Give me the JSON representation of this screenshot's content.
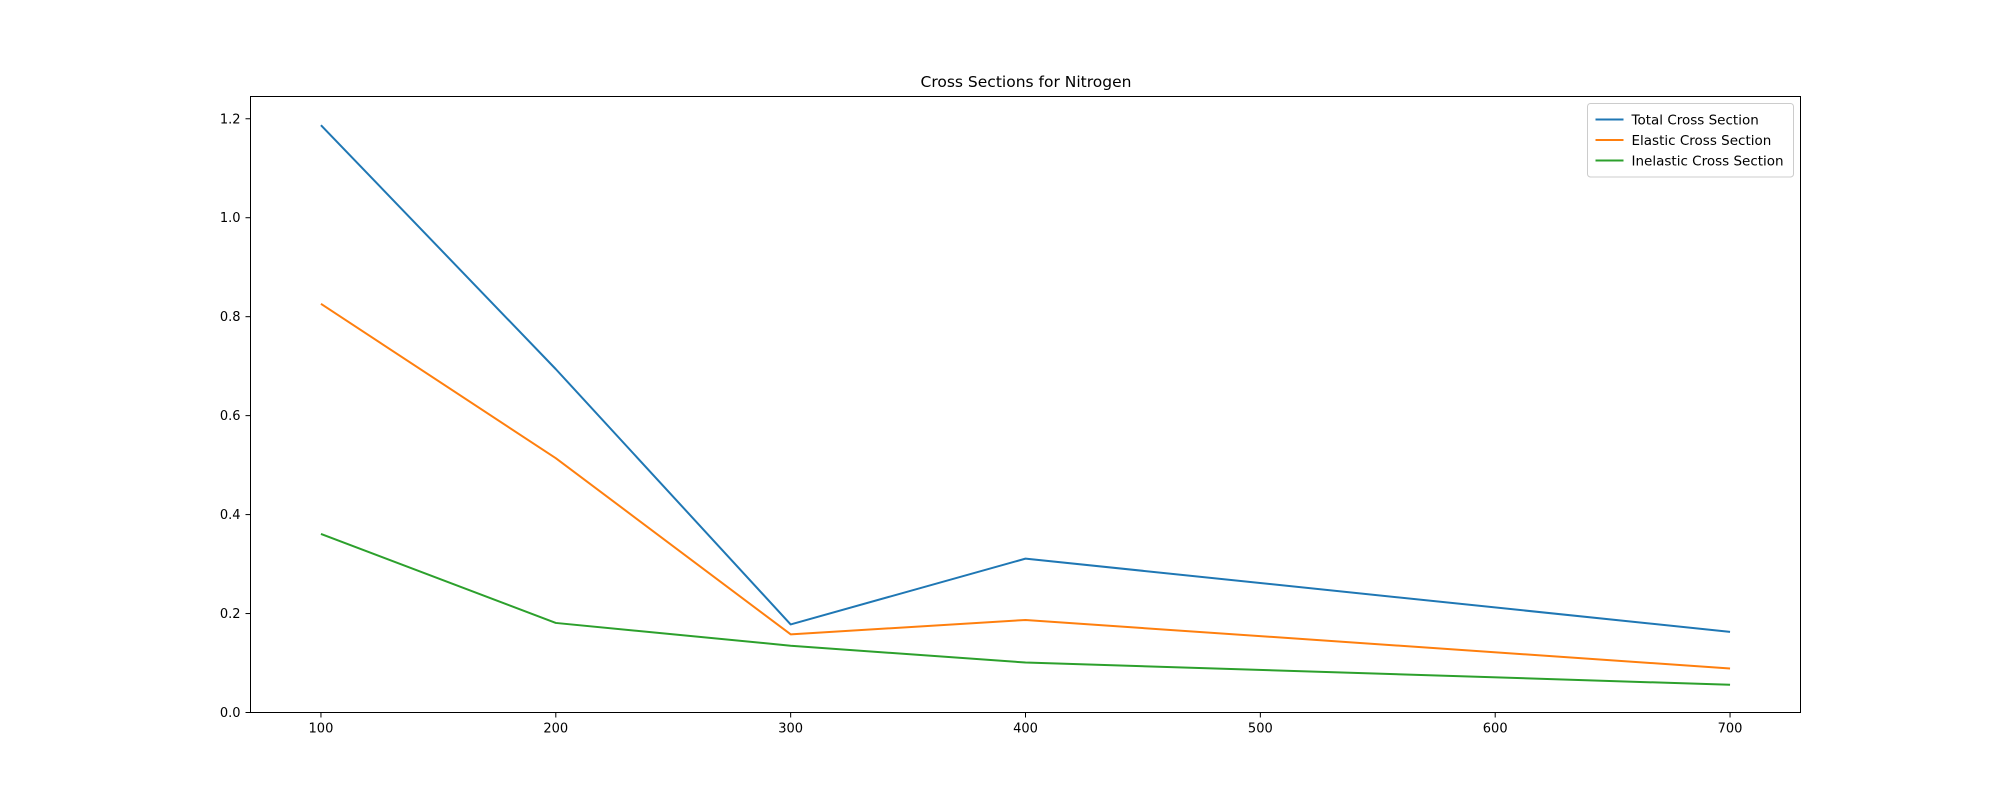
{
  "chart_data": {
    "type": "line",
    "title": "Cross Sections for Nitrogen",
    "xlabel": "",
    "ylabel": "",
    "x": [
      100,
      200,
      300,
      400,
      500,
      600,
      700
    ],
    "xticks": [
      100,
      200,
      300,
      400,
      500,
      600,
      700
    ],
    "yticks": [
      0.0,
      0.2,
      0.4,
      0.6,
      0.8,
      1.0,
      1.2
    ],
    "xlim": [
      70,
      730
    ],
    "ylim": [
      0.0,
      1.245
    ],
    "grid": false,
    "legend_position": "top-right",
    "series": [
      {
        "name": "Total Cross Section",
        "color": "#1f77b4",
        "x": [
          100,
          200,
          300,
          400,
          700
        ],
        "values": [
          1.187,
          0.694,
          0.178,
          0.311,
          0.163
        ]
      },
      {
        "name": "Elastic Cross Section",
        "color": "#ff7f0e",
        "x": [
          100,
          200,
          300,
          400,
          700
        ],
        "values": [
          0.826,
          0.514,
          0.158,
          0.187,
          0.089
        ]
      },
      {
        "name": "Inelastic Cross Section",
        "color": "#2ca02c",
        "x": [
          100,
          200,
          300,
          400,
          700
        ],
        "values": [
          0.361,
          0.181,
          0.135,
          0.101,
          0.056
        ]
      }
    ]
  }
}
